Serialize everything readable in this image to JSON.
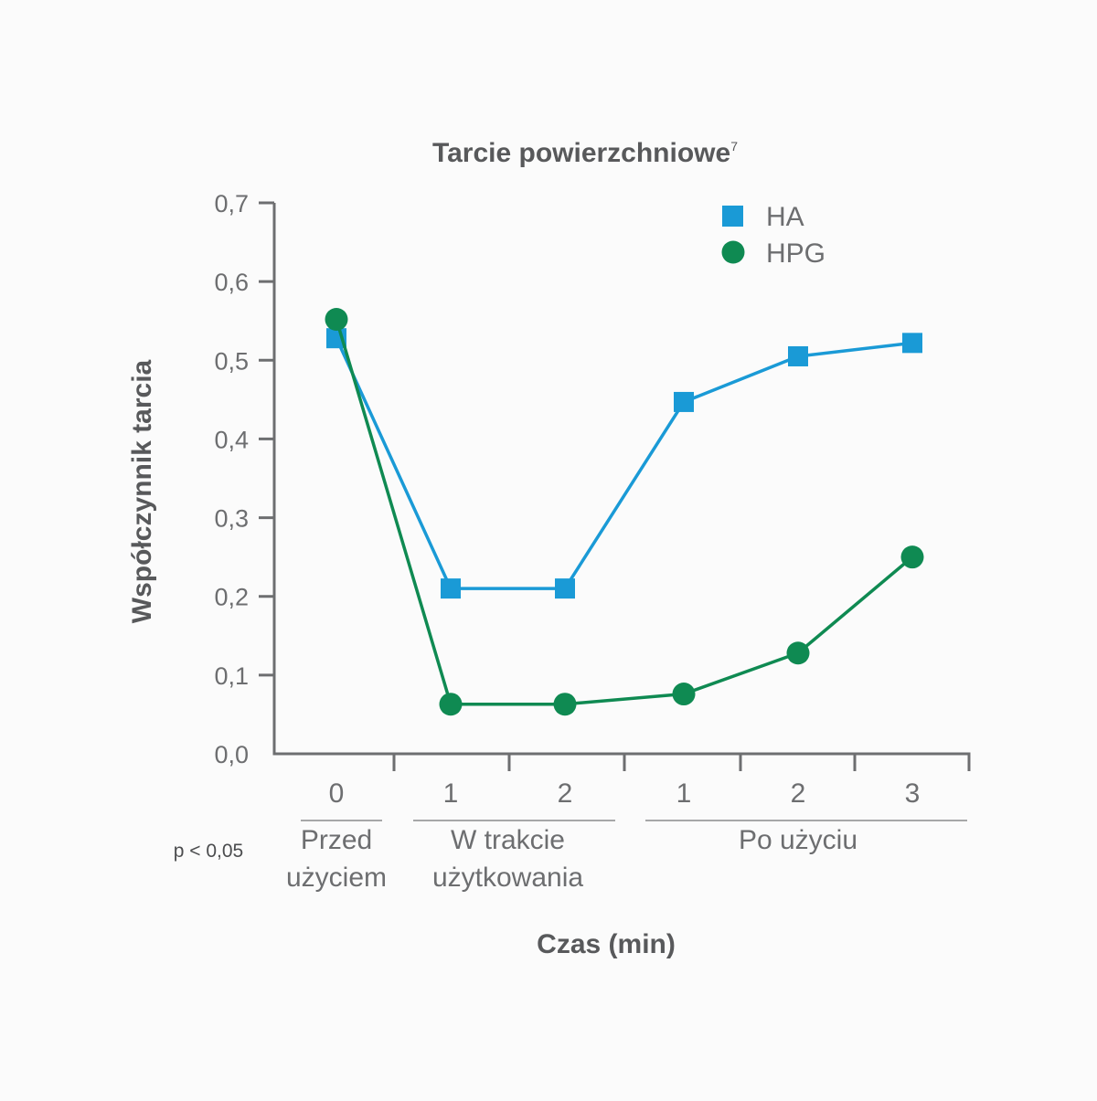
{
  "chart_data": {
    "type": "line",
    "title": "Tarcie powierzchniowe",
    "title_sup": "7",
    "xlabel": "Czas (min)",
    "ylabel": "Współczynnik tarcia",
    "ylim": [
      0,
      0.7
    ],
    "yticks": [
      "0,0",
      "0,1",
      "0,2",
      "0,3",
      "0,4",
      "0,5",
      "0,6",
      "0,7"
    ],
    "categories": [
      "0",
      "1",
      "2",
      "1",
      "2",
      "3"
    ],
    "groups": [
      {
        "lines": [
          "Przed",
          "użyciem"
        ],
        "span": [
          0,
          0
        ]
      },
      {
        "lines": [
          "W trakcie",
          "użytkowania"
        ],
        "span": [
          1,
          2
        ]
      },
      {
        "lines": [
          "Po użyciu"
        ],
        "span": [
          3,
          5
        ]
      }
    ],
    "series": [
      {
        "name": "HA",
        "marker": "square",
        "color": "#1a9ad6",
        "values": [
          0.528,
          0.21,
          0.21,
          0.447,
          0.505,
          0.522
        ]
      },
      {
        "name": "HPG",
        "marker": "circle",
        "color": "#0f8a52",
        "values": [
          0.552,
          0.063,
          0.063,
          0.076,
          0.128,
          0.25
        ]
      }
    ],
    "legend_position": "top-right",
    "grid": false,
    "footnote": "p < 0,05",
    "axis_color": "#6d6e70"
  }
}
